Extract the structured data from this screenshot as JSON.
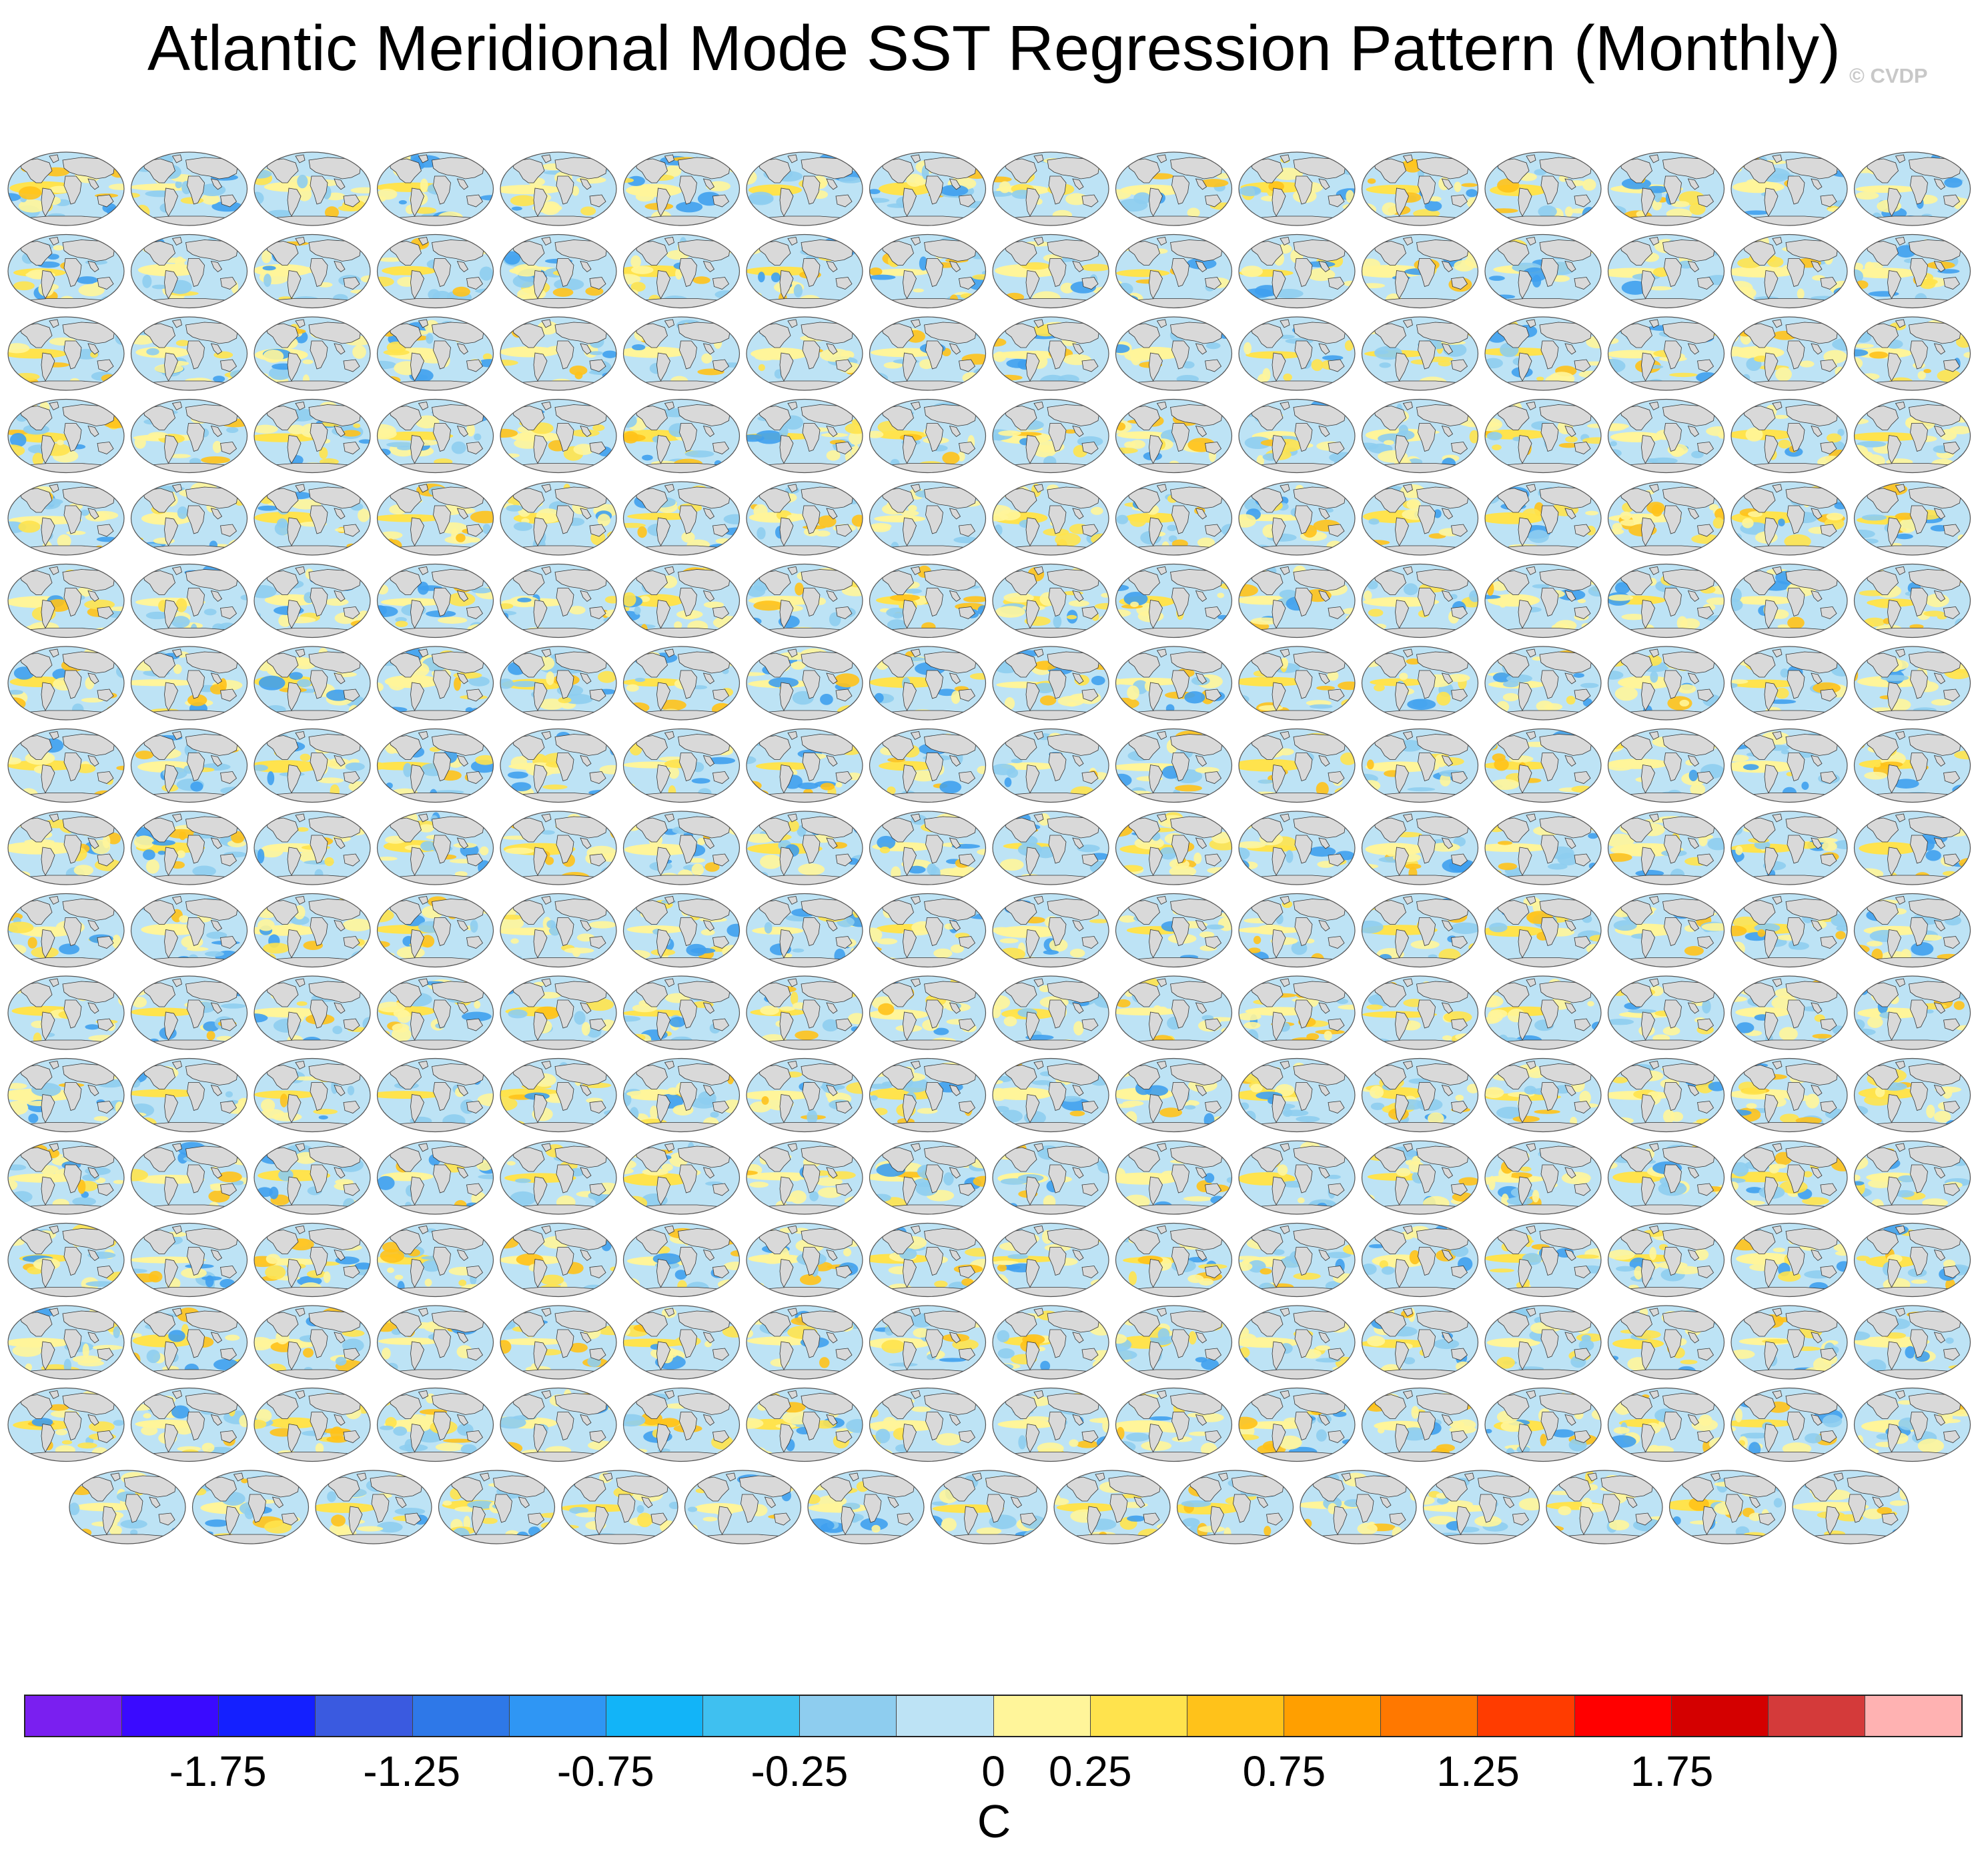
{
  "figure": {
    "title": "Atlantic Meridional Mode SST Regression Pattern (Monthly)",
    "credit": "© CVDP",
    "grid": {
      "rows": 17,
      "columns": 16,
      "last_row_panels": 15
    },
    "panel_colors": {
      "ocean_neutral": "#bde3f5",
      "ocean_light_positive": "#fff59a",
      "ocean_positive": "#ffe34d",
      "ocean_strong_positive": "#ffc21a",
      "ocean_negative": "#8ecdef",
      "ocean_strong_negative": "#3fa0ee",
      "land": "#d9d9d9",
      "coastline": "#333333",
      "outline": "#555555"
    }
  },
  "colorbar": {
    "colors": [
      "#7a1ff0",
      "#3a0aff",
      "#1420ff",
      "#3a5ae0",
      "#2e78e8",
      "#2f96f4",
      "#12b4f8",
      "#3fc0f0",
      "#8ecdef",
      "#bde3f5",
      "#fff59a",
      "#ffe34d",
      "#ffc21a",
      "#ff9f00",
      "#ff7800",
      "#ff3c00",
      "#ff0000",
      "#d40000",
      "#d43a3a",
      "#ffb2b2"
    ],
    "tick_labels": [
      "-1.75",
      "-1.25",
      "-0.75",
      "-0.25",
      "0",
      "0.25",
      "0.75",
      "1.25",
      "1.75"
    ],
    "units": "C"
  }
}
